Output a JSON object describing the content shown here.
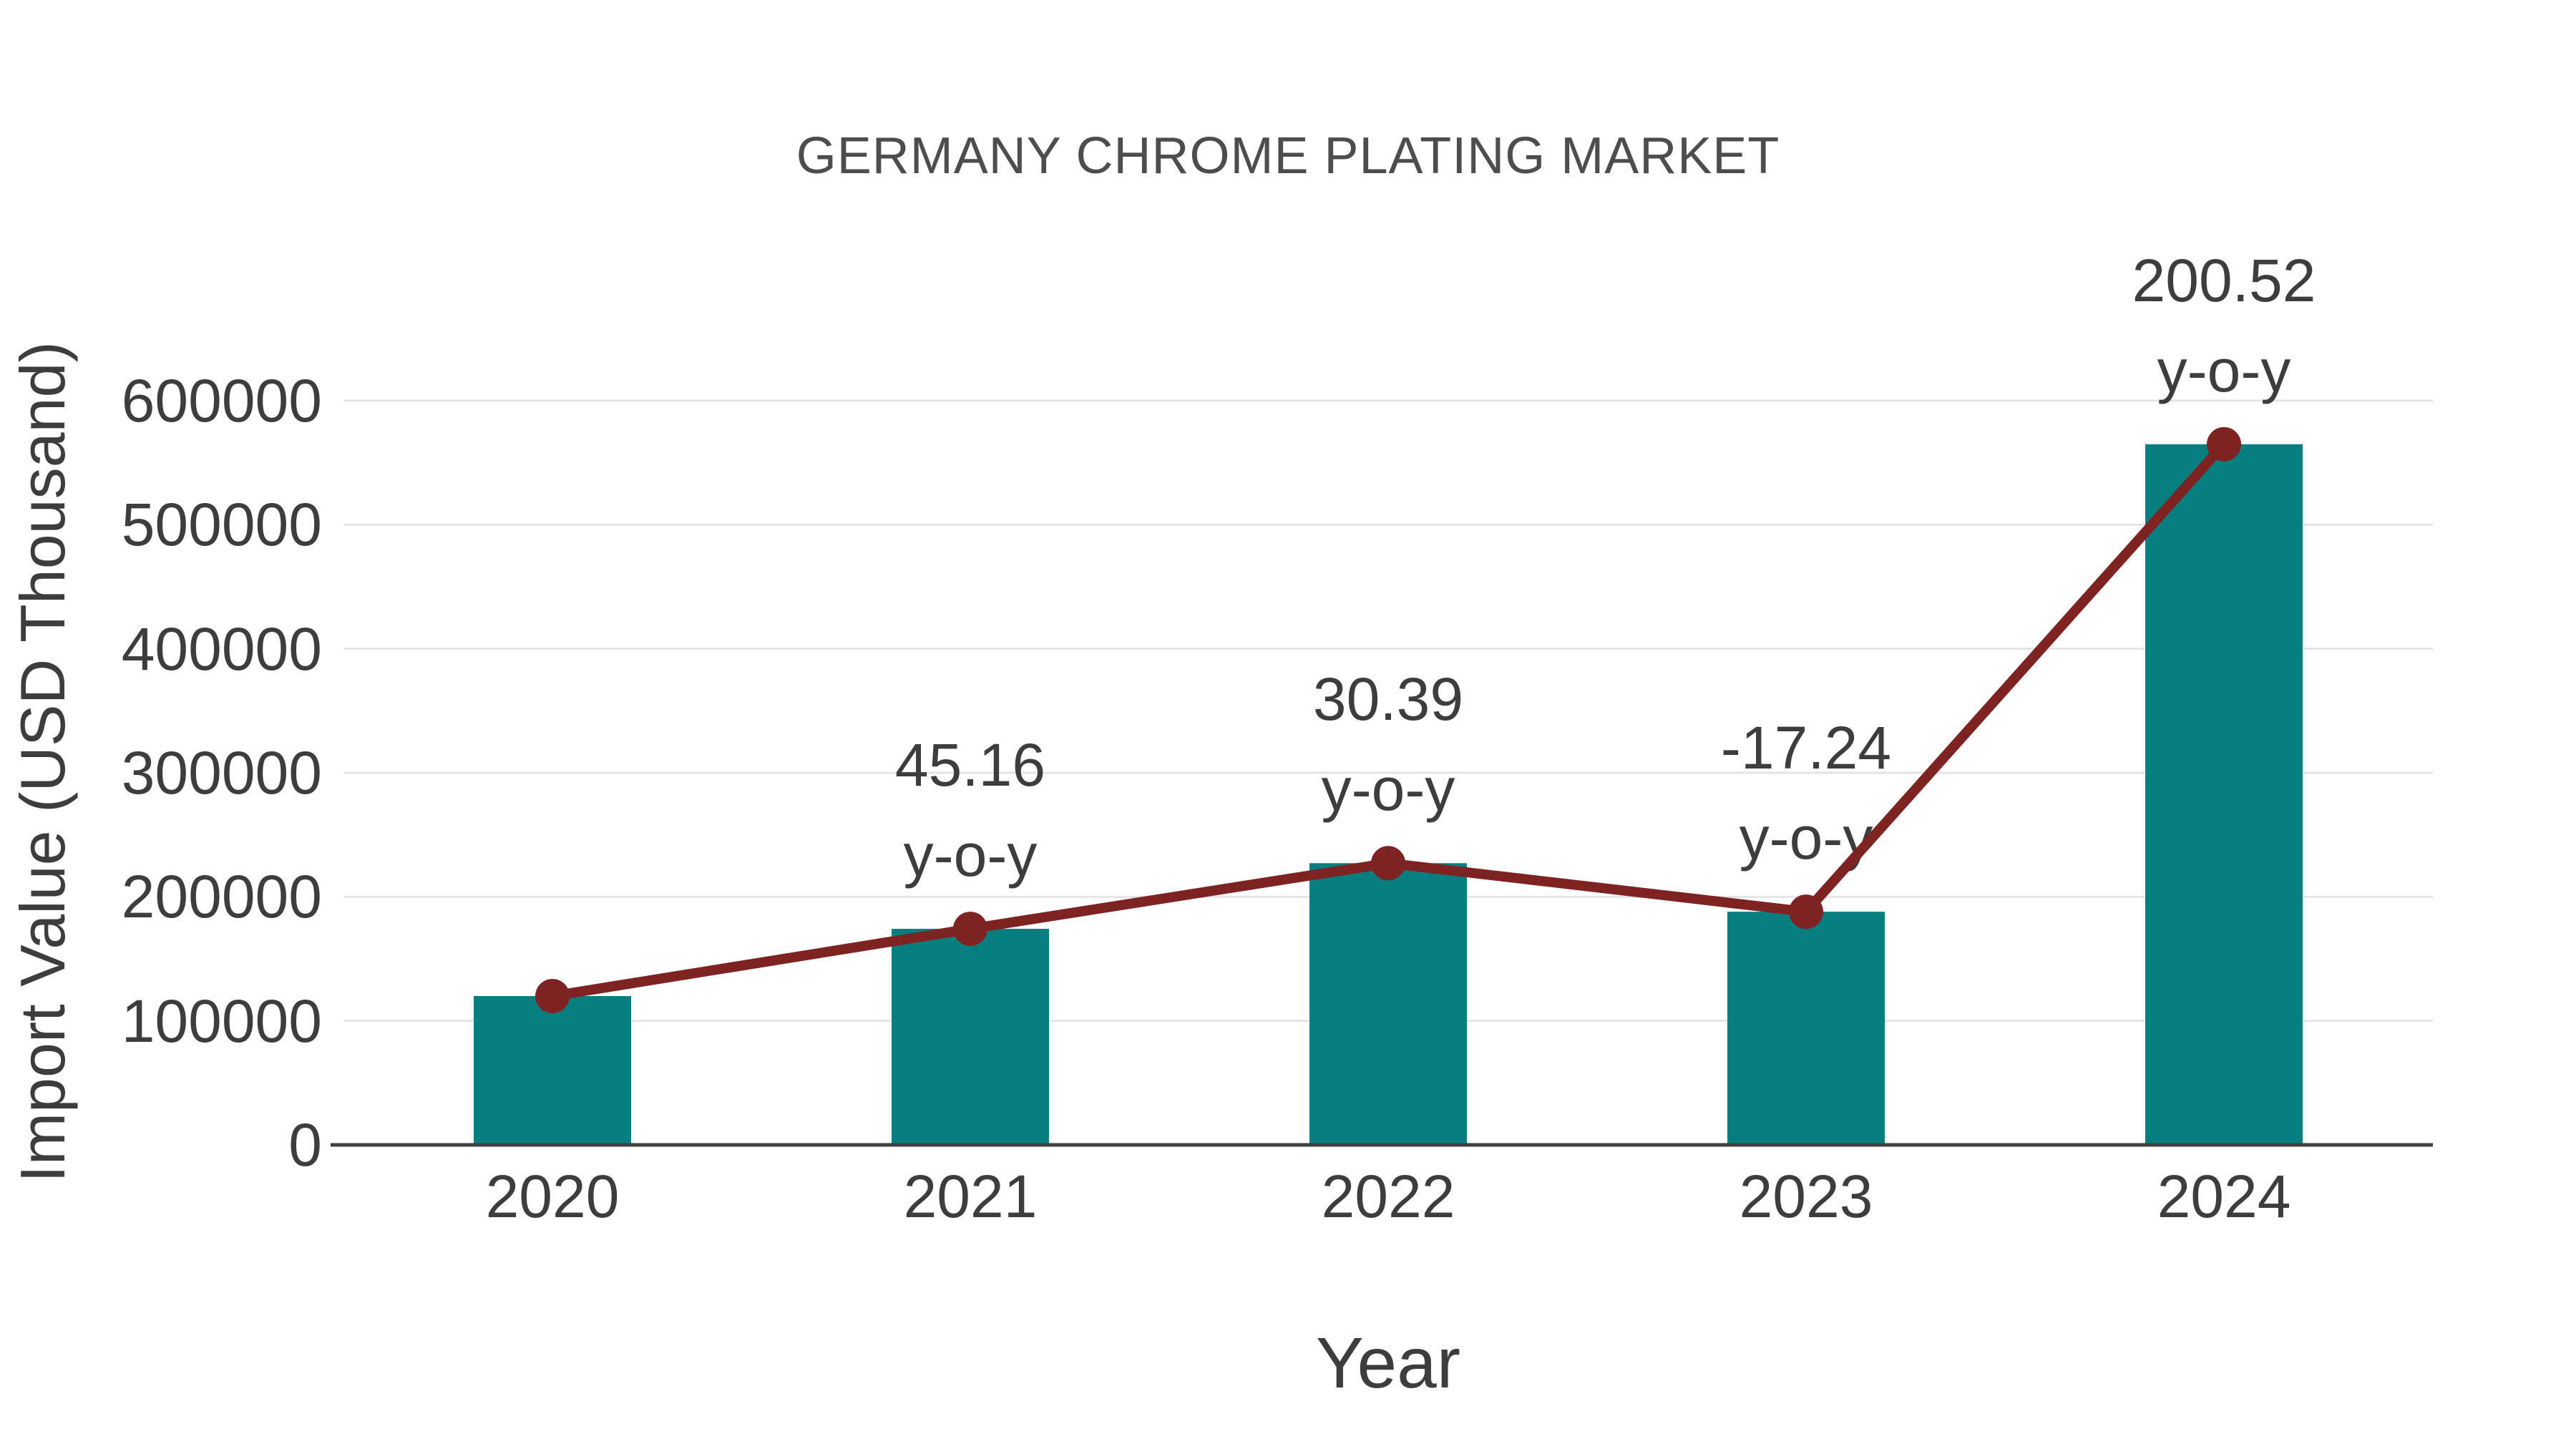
{
  "title": {
    "text": "GERMANY CHROME PLATING MARKET"
  },
  "chart_data": {
    "type": "bar",
    "title": "GERMANY CHROME PLATING MARKET",
    "xlabel": "Year",
    "ylabel": "Import Value (USD Thousand)",
    "categories": [
      "2020",
      "2021",
      "2022",
      "2023",
      "2024"
    ],
    "series": [
      {
        "name": "Import Value (USD Thousand)",
        "type": "bar",
        "values": [
          120000,
          174190,
          227130,
          187980,
          564900
        ]
      },
      {
        "name": "y-o-y trend line",
        "type": "line",
        "values": [
          120000,
          174190,
          227130,
          187980,
          564900
        ]
      }
    ],
    "yoy_annotations": [
      {
        "category": "2021",
        "label": "45.16",
        "suffix": "y-o-y"
      },
      {
        "category": "2022",
        "label": "30.39",
        "suffix": "y-o-y"
      },
      {
        "category": "2023",
        "label": "-17.24",
        "suffix": "y-o-y"
      },
      {
        "category": "2024",
        "label": "200.52",
        "suffix": "y-o-y"
      }
    ],
    "ylim": [
      0,
      600000
    ],
    "yticks": [
      0,
      100000,
      200000,
      300000,
      400000,
      500000,
      600000
    ],
    "grid": true,
    "legend_position": "none"
  },
  "colors": {
    "bar": "#077f80",
    "line": "#7e2222",
    "marker": "#7e2222",
    "grid": "#e4e4e4",
    "axis": "#3f3f3f",
    "text": "#3d3d3d",
    "title": "#4d4d4d",
    "background": "#ffffff"
  }
}
